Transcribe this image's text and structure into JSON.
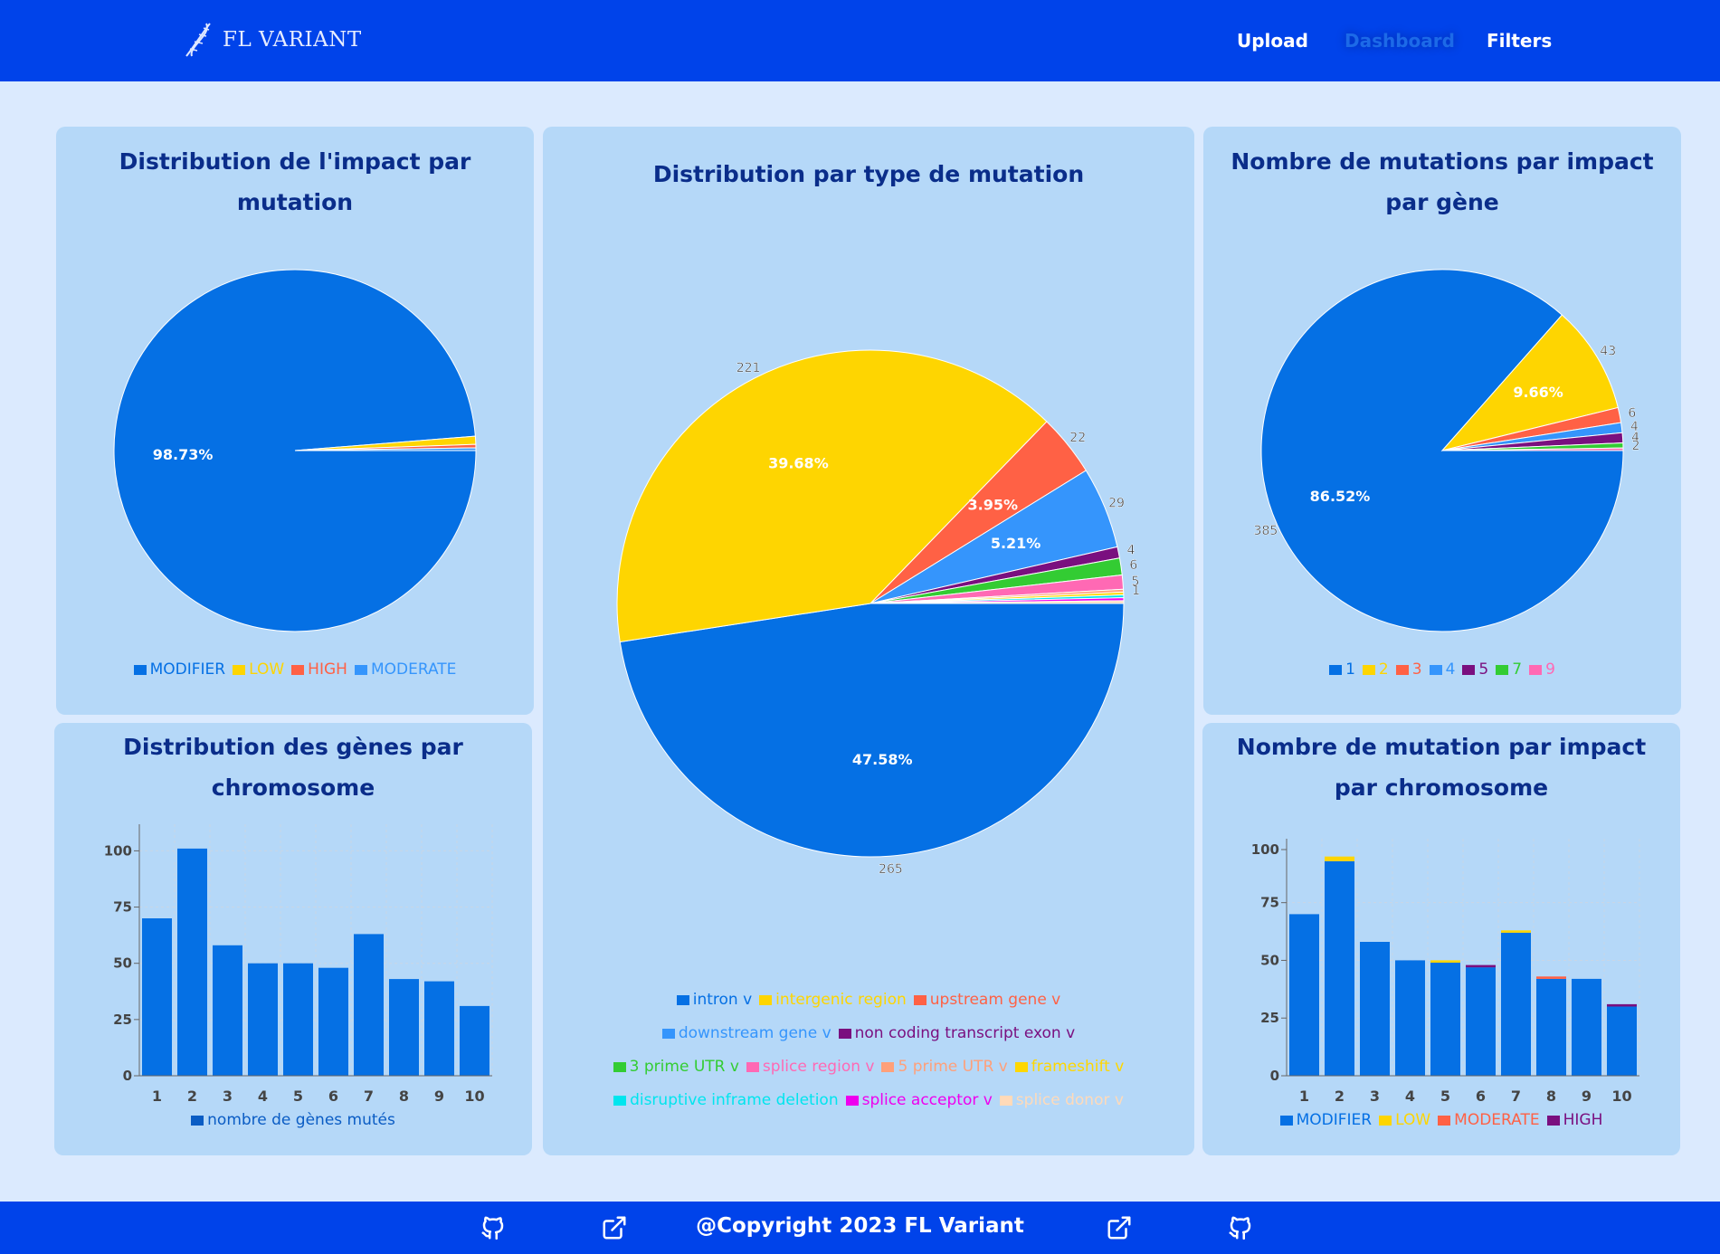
{
  "brand": {
    "name": "FL VARIANT"
  },
  "nav": {
    "upload": "Upload",
    "dashboard": "Dashboard",
    "filters": "Filters"
  },
  "footer": {
    "copyright": "@Copyright 2023 FL Variant"
  },
  "colors": {
    "modifier": "#0570e4",
    "low": "#fed501",
    "moderate": "#ff6145",
    "high": "#ff6145"
  },
  "chart_data": [
    {
      "type": "pie",
      "title": "Distribution de l'impact par mutation",
      "categories": [
        "MODIFIER",
        "LOW",
        "HIGH",
        "MODERATE"
      ],
      "values": [
        1636,
        12,
        5,
        4
      ],
      "colors": [
        "#0570e4",
        "#fed501",
        "#ff6145",
        "#3595fc"
      ],
      "slice_labels": [
        "98.73%",
        "",
        "",
        ""
      ],
      "legend_position": "bottom"
    },
    {
      "type": "pie",
      "title": "Distribution par type de mutation",
      "categories": [
        "intron v",
        "intergenic region",
        "upstream gene v",
        "downstream gene v",
        "non coding transcript exon v",
        "3 prime UTR v",
        "splice region v",
        "5 prime UTR v",
        "frameshift v",
        "disruptive inframe deletion",
        "splice acceptor v",
        "splice donor v"
      ],
      "values": [
        265,
        221,
        22,
        29,
        4,
        6,
        5,
        1,
        1,
        1,
        1,
        1
      ],
      "colors": [
        "#0570e4",
        "#fed501",
        "#ff6145",
        "#3595fc",
        "#7a0f7f",
        "#33cc33",
        "#ff69b4",
        "#ffa07a",
        "#ffd700",
        "#00e5ee",
        "#ee00ee",
        "#ffdab9"
      ],
      "slice_labels": [
        "47.58%",
        "39.68%",
        "3.95%",
        "5.21%",
        "",
        "",
        "",
        "",
        "",
        "",
        "",
        ""
      ],
      "outer_labels": [
        "265",
        "221",
        "22",
        "29",
        "4",
        "6",
        "5",
        "1",
        "",
        "",
        "",
        ""
      ],
      "legend_rows": [
        [
          0,
          1,
          2
        ],
        [
          3,
          4
        ],
        [
          5,
          6,
          7,
          8
        ],
        [
          9,
          10,
          11
        ]
      ],
      "legend_position": "bottom"
    },
    {
      "type": "pie",
      "title": "Nombre de mutations par impact par gène",
      "categories": [
        "1",
        "2",
        "3",
        "4",
        "5",
        "7",
        "9"
      ],
      "values": [
        385,
        43,
        6,
        4,
        4,
        2,
        1
      ],
      "colors": [
        "#0570e4",
        "#fed501",
        "#ff6145",
        "#3595fc",
        "#7a0f7f",
        "#33cc33",
        "#ff69b4"
      ],
      "slice_labels": [
        "86.52%",
        "9.66%",
        "",
        "",
        "",
        "",
        ""
      ],
      "outer_labels": [
        "385",
        "43",
        "6",
        "4",
        "4",
        "2",
        ""
      ],
      "legend_position": "bottom"
    },
    {
      "type": "bar",
      "title": "Distribution des gènes par chromosome",
      "categories": [
        "1",
        "2",
        "3",
        "4",
        "5",
        "6",
        "7",
        "8",
        "9",
        "10"
      ],
      "series": [
        {
          "name": "nombre de gènes mutés",
          "values": [
            70,
            101,
            58,
            50,
            50,
            48,
            63,
            43,
            42,
            31
          ],
          "color": "#0570e4"
        }
      ],
      "ylim": [
        0,
        107
      ],
      "yticks": [
        "0",
        "25",
        "50",
        "75",
        "100"
      ],
      "grid": true,
      "legend_position": "bottom"
    },
    {
      "type": "bar",
      "title": "Nombre de mutation par impact par chromosome",
      "stacked": true,
      "categories": [
        "1",
        "2",
        "3",
        "4",
        "5",
        "6",
        "7",
        "8",
        "9",
        "10"
      ],
      "series": [
        {
          "name": "MODIFIER",
          "values": [
            70,
            93,
            58,
            50,
            49,
            47,
            62,
            42,
            42,
            30
          ],
          "color": "#0570e4"
        },
        {
          "name": "LOW",
          "values": [
            0,
            2,
            0,
            0,
            1,
            0,
            1,
            0,
            0,
            0
          ],
          "color": "#fed501"
        },
        {
          "name": "MODERATE",
          "values": [
            0,
            0,
            0,
            0,
            0,
            0,
            0,
            1,
            0,
            0
          ],
          "color": "#ff6145"
        },
        {
          "name": "HIGH",
          "values": [
            0,
            0,
            0,
            0,
            0,
            1,
            0,
            0,
            0,
            1
          ],
          "color": "#7a0f7f"
        }
      ],
      "ylim": [
        0,
        98
      ],
      "yticks": [
        "0",
        "25",
        "50",
        "75",
        "100"
      ],
      "grid": true,
      "legend_position": "bottom"
    }
  ]
}
